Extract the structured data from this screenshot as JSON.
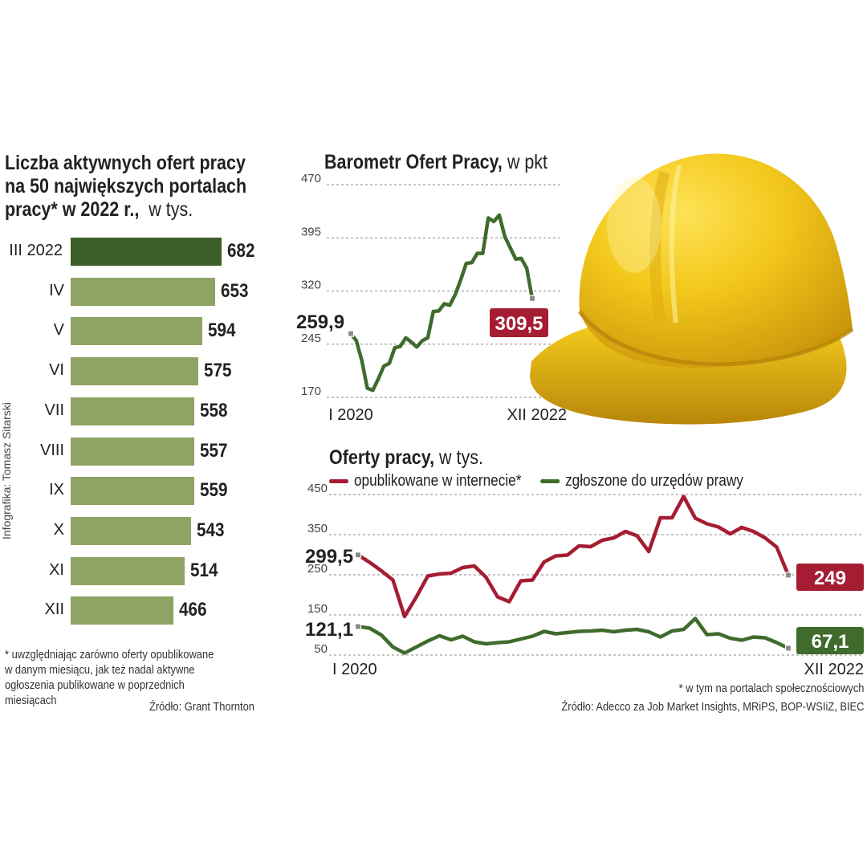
{
  "left": {
    "title_bold": [
      "Liczba aktywnych ofert pracy",
      "na 50 największych portalach",
      "pracy* w 2022 r.,"
    ],
    "title_unit": "w tys.",
    "footnote": [
      "* uwzględniając zarówno oferty opublikowane",
      "w danym miesiącu, jak też nadal aktywne",
      "ogłoszenia publikowane w poprzednich",
      "miesiącach"
    ],
    "source": "Źródło: Grant Thornton"
  },
  "credit": "Infografika: Tomasz Sitarski",
  "barometer": {
    "title_bold": "Barometr Ofert Pracy,",
    "title_unit": "w pkt",
    "start_label": "259,9",
    "end_label": "309,5",
    "x_start": "I 2020",
    "x_end": "XII 2022"
  },
  "offers": {
    "title_bold": "Oferty pracy,",
    "title_unit": "w tys.",
    "legend_internet": "opublikowane w internecie*",
    "legend_offices": "zgłoszone do urzędów prawy",
    "internet_start": "299,5",
    "internet_end": "249",
    "offices_start": "121,1",
    "offices_end": "67,1",
    "x_start": "I 2020",
    "x_end": "XII 2022",
    "footnote": "* w tym na portalach społecznościowych",
    "source": "Źródło: Adecco za Job Market Insights, MRiPS, BOP-WSIiZ, BIEC"
  },
  "colors": {
    "dark_green": "#3d5f2a",
    "light_green": "#8ea464",
    "line_green": "#3f6b2c",
    "red": "#a51d33",
    "gridline": "#8a8a8a",
    "helmet": "#f2c418"
  },
  "chart_data": [
    {
      "type": "bar",
      "orientation": "horizontal",
      "title": "Liczba aktywnych ofert pracy na 50 największych portalach pracy* w 2022 r., w tys.",
      "categories": [
        "III 2022",
        "IV",
        "V",
        "VI",
        "VII",
        "VIII",
        "IX",
        "X",
        "XI",
        "XII"
      ],
      "values": [
        682,
        653,
        594,
        575,
        558,
        557,
        559,
        543,
        514,
        466
      ],
      "value_labels": [
        "682",
        "653",
        "594",
        "575",
        "558",
        "557",
        "559",
        "543",
        "514",
        "466"
      ],
      "highlight_index": 0
    },
    {
      "type": "line",
      "title": "Barometr Ofert Pracy, w pkt",
      "yticks": [
        "470",
        "395",
        "320",
        "245",
        "170"
      ],
      "ytick_values": [
        470,
        395,
        320,
        245,
        170
      ],
      "ylim": [
        170,
        470
      ],
      "x_labels": [
        "I 2020",
        "XII 2022"
      ],
      "series": [
        {
          "name": "Barometr Ofert Pracy",
          "values": [
            259.9,
            250,
            222,
            183,
            180,
            196,
            214,
            218,
            240,
            242,
            254,
            248,
            241,
            250,
            254,
            291,
            292,
            302,
            300,
            315,
            336,
            359,
            360,
            373,
            373,
            423,
            418,
            427,
            397,
            381,
            365,
            366,
            352,
            309.5
          ]
        }
      ]
    },
    {
      "type": "line",
      "title": "Oferty pracy, w tys.",
      "yticks": [
        "450",
        "350",
        "250",
        "150",
        "50"
      ],
      "ytick_values": [
        450,
        350,
        250,
        150,
        50
      ],
      "ylim": [
        50,
        450
      ],
      "x_labels": [
        "I 2020",
        "XII 2022"
      ],
      "series": [
        {
          "name": "opublikowane w internecie*",
          "values": [
            299.5,
            281,
            260,
            237,
            146,
            194,
            247,
            252,
            254,
            268,
            272,
            244,
            195,
            183,
            235,
            237,
            282,
            297,
            299,
            322,
            320,
            336,
            342,
            358,
            347,
            308,
            392,
            392,
            445,
            391,
            377,
            369,
            352,
            368,
            358,
            342,
            319,
            249
          ]
        },
        {
          "name": "zgłoszone do urzędów prawy",
          "values": [
            121.1,
            117,
            100,
            70,
            55,
            70,
            85,
            98,
            88,
            97,
            83,
            78,
            81,
            83,
            90,
            97,
            109,
            103,
            106,
            109,
            110,
            112,
            108,
            112,
            114,
            108,
            95,
            110,
            114,
            141,
            101,
            103,
            92,
            87,
            95,
            93,
            81,
            67.1
          ]
        }
      ]
    }
  ]
}
